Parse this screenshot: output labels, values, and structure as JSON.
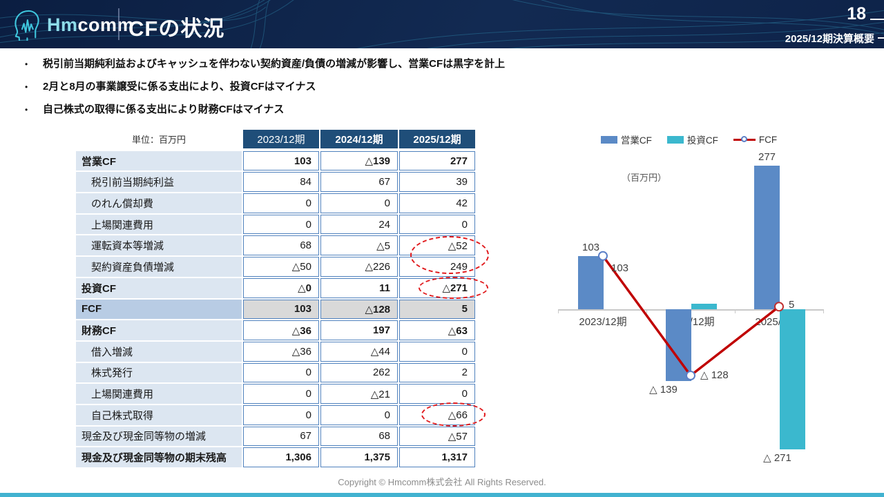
{
  "header": {
    "logo_hm": "Hm",
    "logo_comm": "comm",
    "title": "CFの状況",
    "page_number": "18",
    "subtitle": "2025/12期決算概要"
  },
  "bullets": [
    "税引前当期純利益およびキャッシュを伴わない契約資産/負債の増減が影響し、営業CFは黒字を計上",
    "2月と8月の事業譲受に係る支出により、投資CFはマイナス",
    "自己株式の取得に係る支出により財務CFはマイナス"
  ],
  "table": {
    "unit_label": "単位：百万円",
    "columns": [
      "2023/12期",
      "2024/12期",
      "2025/12期"
    ],
    "rows": [
      {
        "label": "営業CF",
        "values": [
          "103",
          "△139",
          "277"
        ],
        "bold": true,
        "indent": false,
        "fcf": false
      },
      {
        "label": "税引前当期純利益",
        "values": [
          "84",
          "67",
          "39"
        ],
        "bold": false,
        "indent": true,
        "fcf": false
      },
      {
        "label": "のれん償却費",
        "values": [
          "0",
          "0",
          "42"
        ],
        "bold": false,
        "indent": true,
        "fcf": false
      },
      {
        "label": "上場関連費用",
        "values": [
          "0",
          "24",
          "0"
        ],
        "bold": false,
        "indent": true,
        "fcf": false
      },
      {
        "label": "運転資本等増減",
        "values": [
          "68",
          "△5",
          "△52"
        ],
        "bold": false,
        "indent": true,
        "fcf": false
      },
      {
        "label": "契約資産負債増減",
        "values": [
          "△50",
          "△226",
          "249"
        ],
        "bold": false,
        "indent": true,
        "fcf": false
      },
      {
        "label": "投資CF",
        "values": [
          "△0",
          "11",
          "△271"
        ],
        "bold": true,
        "indent": false,
        "fcf": false
      },
      {
        "label": "FCF",
        "values": [
          "103",
          "△128",
          "5"
        ],
        "bold": true,
        "indent": false,
        "fcf": true
      },
      {
        "label": "財務CF",
        "values": [
          "△36",
          "197",
          "△63"
        ],
        "bold": true,
        "indent": false,
        "fcf": false
      },
      {
        "label": "借入増減",
        "values": [
          "△36",
          "△44",
          "0"
        ],
        "bold": false,
        "indent": true,
        "fcf": false
      },
      {
        "label": "株式発行",
        "values": [
          "0",
          "262",
          "2"
        ],
        "bold": false,
        "indent": true,
        "fcf": false
      },
      {
        "label": "上場関連費用",
        "values": [
          "0",
          "△21",
          "0"
        ],
        "bold": false,
        "indent": true,
        "fcf": false
      },
      {
        "label": "自己株式取得",
        "values": [
          "0",
          "0",
          "△66"
        ],
        "bold": false,
        "indent": true,
        "fcf": false
      },
      {
        "label": "現金及び現金同等物の増減",
        "values": [
          "67",
          "68",
          "△57"
        ],
        "bold": false,
        "indent": false,
        "fcf": false
      },
      {
        "label": "現金及び現金同等物の期末残高",
        "values": [
          "1,306",
          "1,375",
          "1,317"
        ],
        "bold": true,
        "indent": false,
        "fcf": false
      }
    ]
  },
  "chart_data": {
    "type": "bar",
    "subtype": "grouped bars with line overlay",
    "categories": [
      "2023/12期",
      "2024/12期",
      "2025/12期"
    ],
    "series": [
      {
        "name": "営業CF",
        "type": "bar",
        "color": "#5B8AC6",
        "values": [
          103,
          -139,
          277
        ],
        "labels": [
          "103",
          "△ 139",
          "277"
        ]
      },
      {
        "name": "投資CF",
        "type": "bar",
        "color": "#3BB8CE",
        "values": [
          0,
          11,
          -271
        ],
        "labels": [
          "",
          "",
          "△ 271"
        ]
      },
      {
        "name": "FCF",
        "type": "line",
        "color": "#C00000",
        "values": [
          103,
          -128,
          5
        ],
        "labels": [
          "103",
          "△ 128",
          "5"
        ]
      }
    ],
    "unit_label": "（百万円）",
    "title": "",
    "xlabel": "",
    "ylabel": "",
    "ylim": [
      -290,
      300
    ],
    "grid": false,
    "legend_position": "top"
  },
  "colors": {
    "header_navy": "#122A52",
    "table_header": "#1F4E79",
    "label_cell": "#DCE6F1",
    "fcf_label_cell": "#B8CCE4",
    "fcf_value_cell": "#D9D9D9",
    "cell_border": "#4F81BD",
    "bar_blue": "#5B8AC6",
    "bar_cyan": "#3BB8CE",
    "line_red": "#C00000",
    "highlight_red": "#E0191C",
    "footer_accent": "#41B2D0"
  },
  "footer": {
    "copyright": "Copyright © Hmcomm株式会社 All Rights Reserved."
  }
}
